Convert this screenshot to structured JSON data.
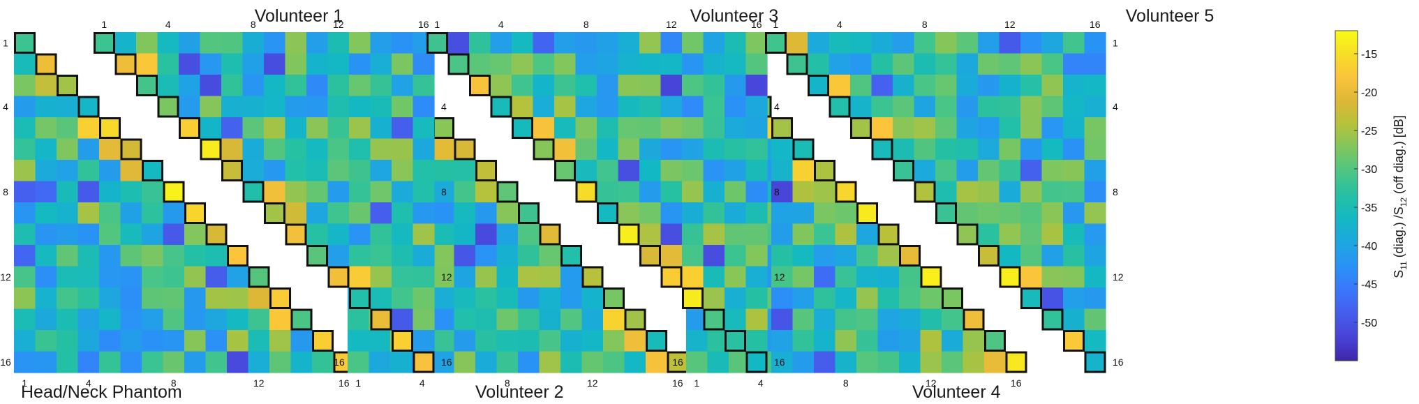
{
  "chart_data": {
    "type": "heatmap",
    "panels": [
      {
        "name": "Volunteer 1",
        "seed": 11
      },
      {
        "name": "Head/Neck Phantom",
        "seed": 23
      },
      {
        "name": "Volunteer 3",
        "seed": 37
      },
      {
        "name": "Volunteer 2",
        "seed": 41
      },
      {
        "name": "Volunteer 5",
        "seed": 53
      },
      {
        "name": "Volunteer 4",
        "seed": 67
      }
    ],
    "channels": 16,
    "tick_labels": [
      "1",
      "4",
      "8",
      "12",
      "16"
    ],
    "colorbar": {
      "label_main": "S",
      "label_sub1": "11",
      "label_mid": " (diag.) /S",
      "label_sub2": "12",
      "label_end": " (off diag.) [dB]",
      "ticks": [
        "-15",
        "-20",
        "-25",
        "-30",
        "-35",
        "-40",
        "-45",
        "-50"
      ],
      "range": [
        -55,
        -12
      ]
    },
    "colormap": [
      "#3e26a8",
      "#4743d7",
      "#465dec",
      "#3a77fb",
      "#2a92f6",
      "#1ea6e0",
      "#13b8c4",
      "#25c0a4",
      "#4bc585",
      "#7ec65f",
      "#b4c23c",
      "#dcb836",
      "#fbc33c",
      "#f6de26",
      "#f9fb15"
    ]
  }
}
